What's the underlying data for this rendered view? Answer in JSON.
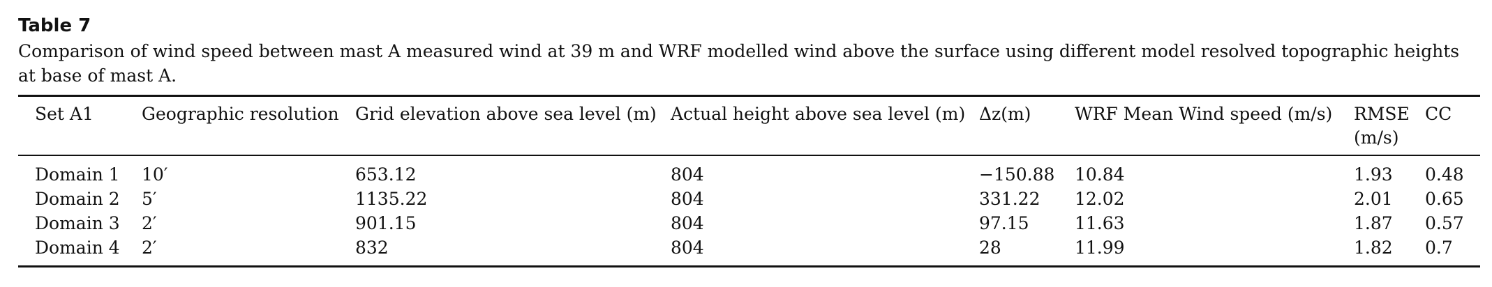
{
  "table": {
    "label": "Table 7",
    "caption": "Comparison of wind speed between mast A measured wind at 39 m and WRF modelled wind above the surface using different model resolved topographic heights at base of mast A.",
    "headers": [
      "Set A1",
      "Geographic resolution",
      "Grid elevation above sea level (m)",
      "Actual height above sea level (m)",
      "Δz(m)",
      "WRF Mean Wind speed (m/s)",
      "RMSE (m/s)",
      "CC"
    ],
    "rows": [
      [
        "Domain 1",
        "10′",
        "653.12",
        "804",
        "−150.88",
        "10.84",
        "1.93",
        "0.48"
      ],
      [
        "Domain 2",
        "5′",
        "1135.22",
        "804",
        "331.22",
        "12.02",
        "2.01",
        "0.65"
      ],
      [
        "Domain 3",
        "2′",
        "901.15",
        "804",
        "97.15",
        "11.63",
        "1.87",
        "0.57"
      ],
      [
        "Domain 4",
        "2′",
        "832",
        "804",
        "28",
        "11.99",
        "1.82",
        "0.7"
      ]
    ]
  }
}
